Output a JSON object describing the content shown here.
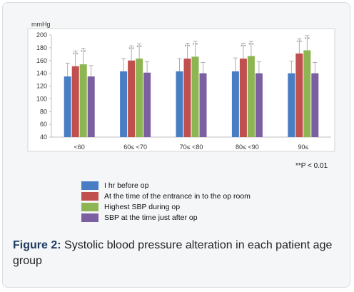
{
  "chart_data": {
    "type": "bar",
    "ylabel": "mmHg",
    "ylim": [
      40,
      200
    ],
    "yticks": [
      40,
      60,
      80,
      100,
      120,
      140,
      160,
      180,
      200
    ],
    "grid": false,
    "legend_position": "bottom-left",
    "categories": [
      "<60",
      "60≤ <70",
      "70≤ <80",
      "80≤ <90",
      "90≤"
    ],
    "series": [
      {
        "name": "I hr before op",
        "color": "#4a7ec4",
        "values": [
          135,
          143,
          143,
          143,
          140
        ],
        "errors": [
          21,
          20,
          20,
          21,
          19
        ]
      },
      {
        "name": "At the time of the entrance in to the op room",
        "color": "#c0504d",
        "values": [
          151,
          160,
          163,
          163,
          171
        ],
        "errors": [
          24,
          23,
          24,
          24,
          23
        ]
      },
      {
        "name": "Highest SBP during op",
        "color": "#8db552",
        "values": [
          154,
          163,
          166,
          167,
          176
        ],
        "errors": [
          25,
          23,
          24,
          23,
          23
        ]
      },
      {
        "name": "SBP at the time just after op",
        "color": "#7b5fa0",
        "values": [
          135,
          141,
          140,
          140,
          140
        ],
        "errors": [
          17,
          17,
          17,
          18,
          17
        ]
      }
    ],
    "significance_marker": "* *",
    "annotation": "**P < 0.01"
  },
  "caption": {
    "label": "Figure 2:",
    "text": "Systolic blood pressure alteration in each patient age group"
  }
}
